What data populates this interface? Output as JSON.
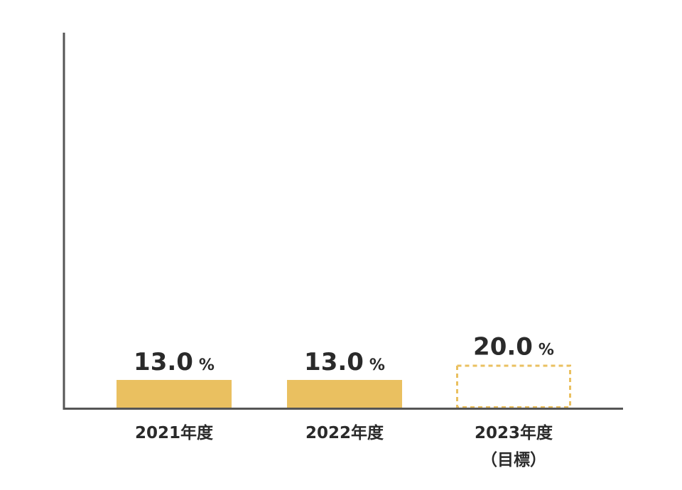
{
  "chart_data": {
    "type": "bar",
    "categories": [
      "2021年度",
      "2022年度",
      "2023年度"
    ],
    "category_sublabels": [
      "",
      "",
      "（目標）"
    ],
    "values": [
      13.0,
      13.0,
      20.0
    ],
    "value_labels": [
      "13.0",
      "13.0",
      "20.0"
    ],
    "unit": "%",
    "bar_style": [
      "solid",
      "solid",
      "dashed"
    ],
    "ylim": [
      0,
      172
    ],
    "grid": false,
    "legend": "none",
    "colors": {
      "bar": "#EAC060",
      "axis": "#555555",
      "text": "#2A2A2A"
    }
  }
}
